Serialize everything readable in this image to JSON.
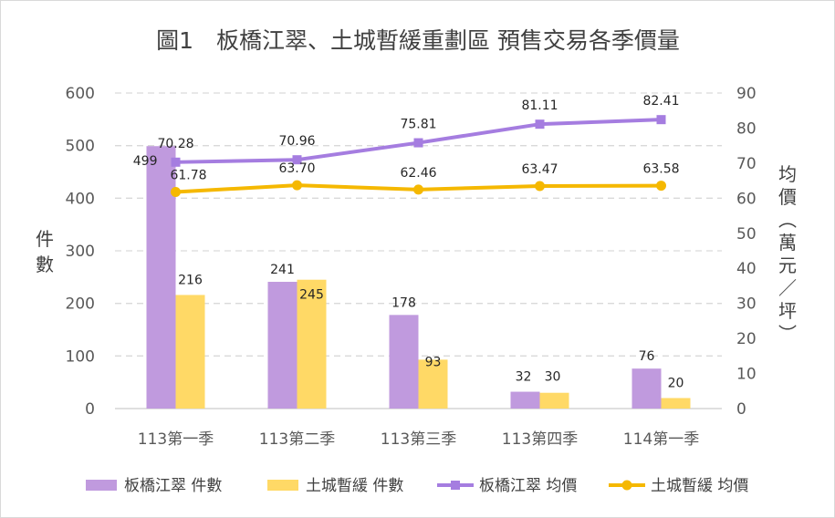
{
  "chart_data": {
    "type": "bar",
    "title": "圖1　板橋江翠、土城暫緩重劃區 預售交易各季價量",
    "categories": [
      "113第一季",
      "113第二季",
      "113第三季",
      "113第四季",
      "114第一季"
    ],
    "y_left": {
      "label_chars": [
        "件",
        "數"
      ],
      "ticks": [
        0,
        100,
        200,
        300,
        400,
        500,
        600
      ],
      "range": [
        0,
        600
      ]
    },
    "y_right": {
      "label_chars": [
        "均",
        "價",
        "︵",
        "萬",
        "元",
        "／",
        "坪",
        "︶"
      ],
      "ticks": [
        0,
        10,
        20,
        30,
        40,
        50,
        60,
        70,
        80,
        90
      ],
      "range": [
        0,
        90
      ]
    },
    "grid": true,
    "legend_position": "bottom",
    "bar_series": [
      {
        "name": "板橋江翠 件數",
        "values": [
          499,
          241,
          178,
          32,
          76
        ],
        "color": "#c09ade"
      },
      {
        "name": "土城暫緩 件數",
        "values": [
          216,
          245,
          93,
          30,
          20
        ],
        "color": "#ffd966"
      }
    ],
    "line_series": [
      {
        "name": "板橋江翠 均價",
        "values": [
          70.28,
          70.96,
          75.81,
          81.11,
          82.41
        ],
        "labels": [
          "70.28",
          "70.96",
          "75.81",
          "81.11",
          "82.41"
        ],
        "color": "#a57de0",
        "marker": "square"
      },
      {
        "name": "土城暫緩 均價",
        "values": [
          61.78,
          63.7,
          62.46,
          63.47,
          63.58
        ],
        "labels": [
          "61.78",
          "63.70",
          "62.46",
          "63.47",
          "63.58"
        ],
        "color": "#f5b800",
        "marker": "circle"
      }
    ]
  }
}
